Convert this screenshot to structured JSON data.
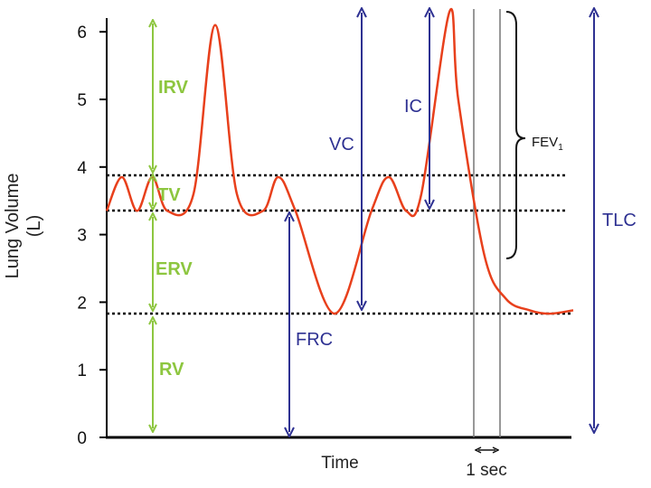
{
  "chart_data": {
    "type": "line",
    "title": "",
    "xlabel": "Time",
    "ylabel": "Lung Volume (L)",
    "ylabel_line1": "Lung Volume",
    "ylabel_line2": "(L)",
    "ylim": [
      0,
      6.3
    ],
    "y_ticks": [
      0,
      1,
      2,
      3,
      4,
      5,
      6
    ],
    "grid": false,
    "line_color": "#e8401c",
    "green_color": "#8dc63f",
    "blue_color": "#2e3192",
    "reference_levels": [
      3.88,
      3.35,
      1.83
    ],
    "volume_trace": [
      [
        0,
        3.35
      ],
      [
        0.07,
        3.85
      ],
      [
        0.14,
        3.35
      ],
      [
        0.21,
        3.85
      ],
      [
        0.28,
        3.35
      ],
      [
        0.4,
        3.6
      ],
      [
        0.5,
        6.1
      ],
      [
        0.6,
        3.6
      ],
      [
        0.72,
        3.35
      ],
      [
        0.79,
        3.85
      ],
      [
        0.87,
        3.35
      ],
      [
        1.05,
        1.83
      ],
      [
        1.22,
        3.35
      ],
      [
        1.3,
        3.85
      ],
      [
        1.38,
        3.35
      ],
      [
        1.45,
        3.6
      ],
      [
        1.58,
        6.3
      ],
      [
        1.62,
        5.0
      ],
      [
        1.74,
        2.7
      ],
      [
        1.84,
        2.05
      ],
      [
        1.95,
        1.88
      ],
      [
        2.04,
        1.83
      ],
      [
        2.15,
        1.88
      ]
    ],
    "time_marker_label": "1 sec",
    "annotations": {
      "irv": "IRV",
      "tv": "TV",
      "erv": "ERV",
      "rv": "RV",
      "frc": "FRC",
      "vc": "VC",
      "ic": "IC",
      "tlc": "TLC",
      "fev": "FEV",
      "fev_sub": "1"
    }
  }
}
